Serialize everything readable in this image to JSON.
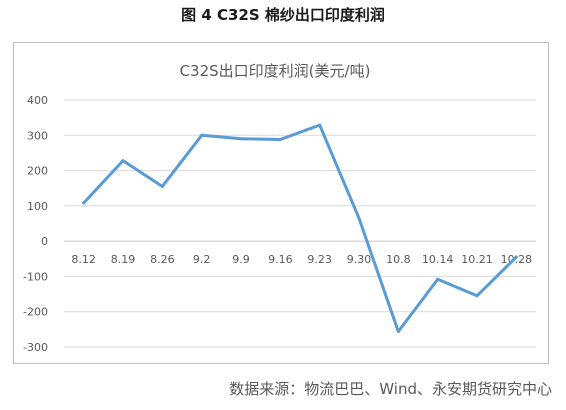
{
  "figure": {
    "label": "图 4 C32S 棉纱出口印度利润",
    "source": "数据来源：物流巴巴、Wind、永安期货研究中心"
  },
  "chart_data": {
    "type": "line",
    "title": "C32S出口印度利润(美元/吨)",
    "xlabel": "",
    "ylabel": "",
    "categories": [
      "8.12",
      "8.19",
      "8.26",
      "9.2",
      "9.9",
      "9.16",
      "9.23",
      "9.30",
      "10.8",
      "10.14",
      "10.21",
      "10.28"
    ],
    "series": [
      {
        "values": [
          108,
          228,
          155,
          300,
          290,
          288,
          329,
          65,
          -256,
          -108,
          -155,
          -45
        ]
      }
    ],
    "ylim": [
      -300,
      400
    ],
    "yticks": [
      400,
      300,
      200,
      100,
      0,
      -100,
      -200,
      -300
    ],
    "grid": true,
    "line_color": "#5b9bd5"
  }
}
